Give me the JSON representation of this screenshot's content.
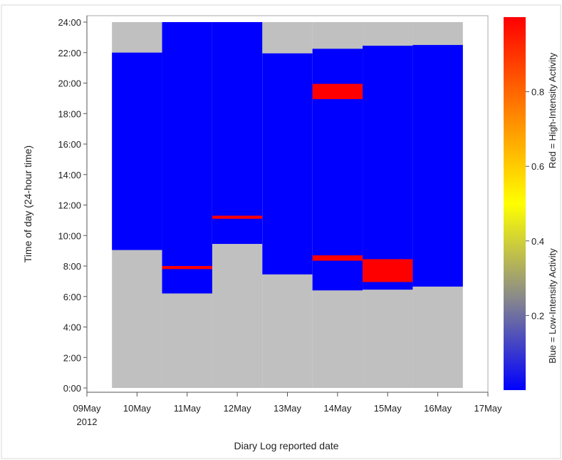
{
  "chart_data": {
    "type": "heatmap",
    "ylabel": "Time of day (24-hour time)",
    "xlabel": "Diary Log reported date",
    "x_ticks": [
      {
        "day": 9,
        "label": "09May",
        "sublabel": "2012"
      },
      {
        "day": 10,
        "label": "10May"
      },
      {
        "day": 11,
        "label": "11May"
      },
      {
        "day": 12,
        "label": "12May"
      },
      {
        "day": 13,
        "label": "13May"
      },
      {
        "day": 14,
        "label": "14May"
      },
      {
        "day": 15,
        "label": "15May"
      },
      {
        "day": 16,
        "label": "16May"
      },
      {
        "day": 17,
        "label": "17May"
      }
    ],
    "y_ticks": [
      "0:00",
      "2:00",
      "4:00",
      "6:00",
      "8:00",
      "10:00",
      "12:00",
      "14:00",
      "16:00",
      "18:00",
      "20:00",
      "22:00",
      "24:00"
    ],
    "ylim": [
      0,
      24
    ],
    "xlim": [
      9,
      17
    ],
    "days": [
      {
        "date": "10May",
        "day": 10,
        "wake": 9.05,
        "sleep": 22.0,
        "high_intensity": []
      },
      {
        "date": "11May",
        "day": 11,
        "wake": 6.2,
        "sleep": 24.0,
        "high_intensity": [
          [
            7.8,
            8.0
          ]
        ]
      },
      {
        "date": "12May",
        "day": 12,
        "wake": 9.45,
        "sleep": 24.0,
        "high_intensity": [
          [
            11.1,
            11.3
          ]
        ]
      },
      {
        "date": "13May",
        "day": 13,
        "wake": 7.45,
        "sleep": 21.95,
        "high_intensity": []
      },
      {
        "date": "14May",
        "day": 14,
        "wake": 6.4,
        "sleep": 22.25,
        "high_intensity": [
          [
            8.35,
            8.7
          ],
          [
            18.95,
            19.95
          ]
        ]
      },
      {
        "date": "15May",
        "day": 15,
        "wake": 6.45,
        "sleep": 22.45,
        "high_intensity": [
          [
            6.95,
            8.45
          ]
        ]
      },
      {
        "date": "16May",
        "day": 16,
        "wake": 6.65,
        "sleep": 22.5,
        "high_intensity": []
      }
    ],
    "colors": {
      "background": "#c0c0c0",
      "low_intensity": "#0000ff",
      "high_intensity": "#ff0000"
    },
    "colorbar": {
      "ticks": [
        0.2,
        0.4,
        0.6,
        0.8
      ],
      "range": [
        0,
        1
      ],
      "label_low": "Blue = Low-Intensity Activity",
      "label_high": "Red = High-Intensity Activity",
      "gradient": [
        "#0000ff",
        "#8a8a8a",
        "#ffff00",
        "#ff8000",
        "#ff0000"
      ]
    }
  }
}
